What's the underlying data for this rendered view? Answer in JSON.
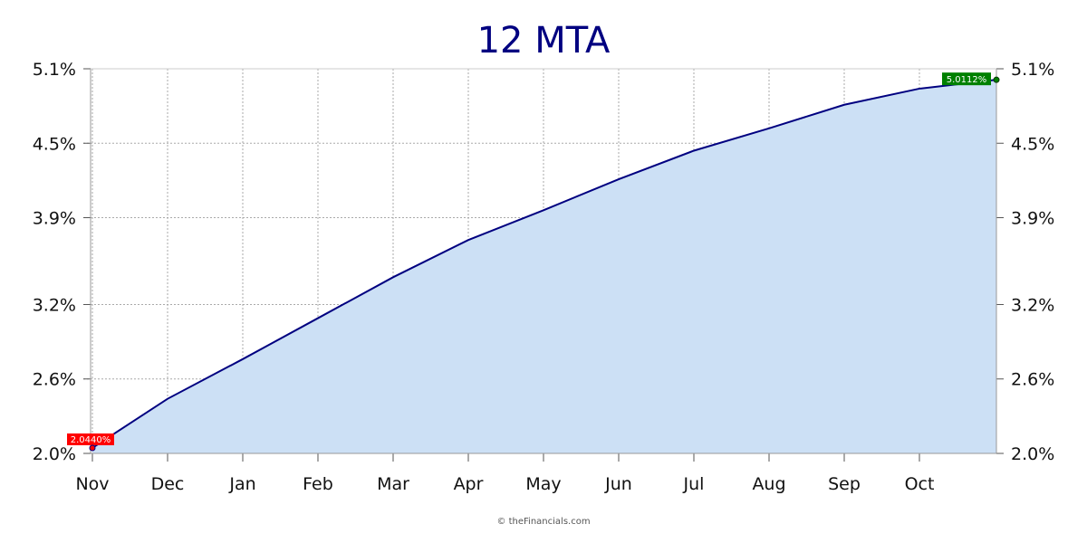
{
  "chart_data": {
    "type": "area",
    "title": "12 MTA",
    "xlabel": "",
    "ylabel": "",
    "categories": [
      "Nov",
      "Dec",
      "Jan",
      "Feb",
      "Mar",
      "Apr",
      "May",
      "Jun",
      "Jul",
      "Aug",
      "Sep",
      "Oct"
    ],
    "series": [
      {
        "x": [
          "Nov",
          "Dec",
          "Jan",
          "Feb",
          "Mar",
          "Apr",
          "May",
          "Jun",
          "Jul",
          "Aug",
          "Sep",
          "Oct",
          "Oct (end)"
        ],
        "values": [
          2.044,
          2.44,
          2.76,
          3.09,
          3.42,
          3.72,
          3.96,
          4.21,
          4.44,
          4.62,
          4.81,
          4.94,
          5.0112
        ]
      }
    ],
    "ylim": [
      2.0,
      5.1
    ],
    "yticks": [
      "2.0%",
      "2.6%",
      "3.2%",
      "3.9%",
      "4.5%",
      "5.1%"
    ],
    "ytick_values": [
      2.0,
      2.6,
      3.2,
      3.9,
      4.5,
      5.1
    ],
    "grid": true,
    "legend": "none",
    "first_value_label": "2.0440%",
    "last_value_label": "5.0112%",
    "credit": "© theFinancials.com",
    "colors": {
      "line": "#000080",
      "fill": "#cce0f5",
      "title": "#000080",
      "first_badge": "#ff0000",
      "last_badge": "#008000",
      "grid": "#aaaaaa"
    }
  }
}
